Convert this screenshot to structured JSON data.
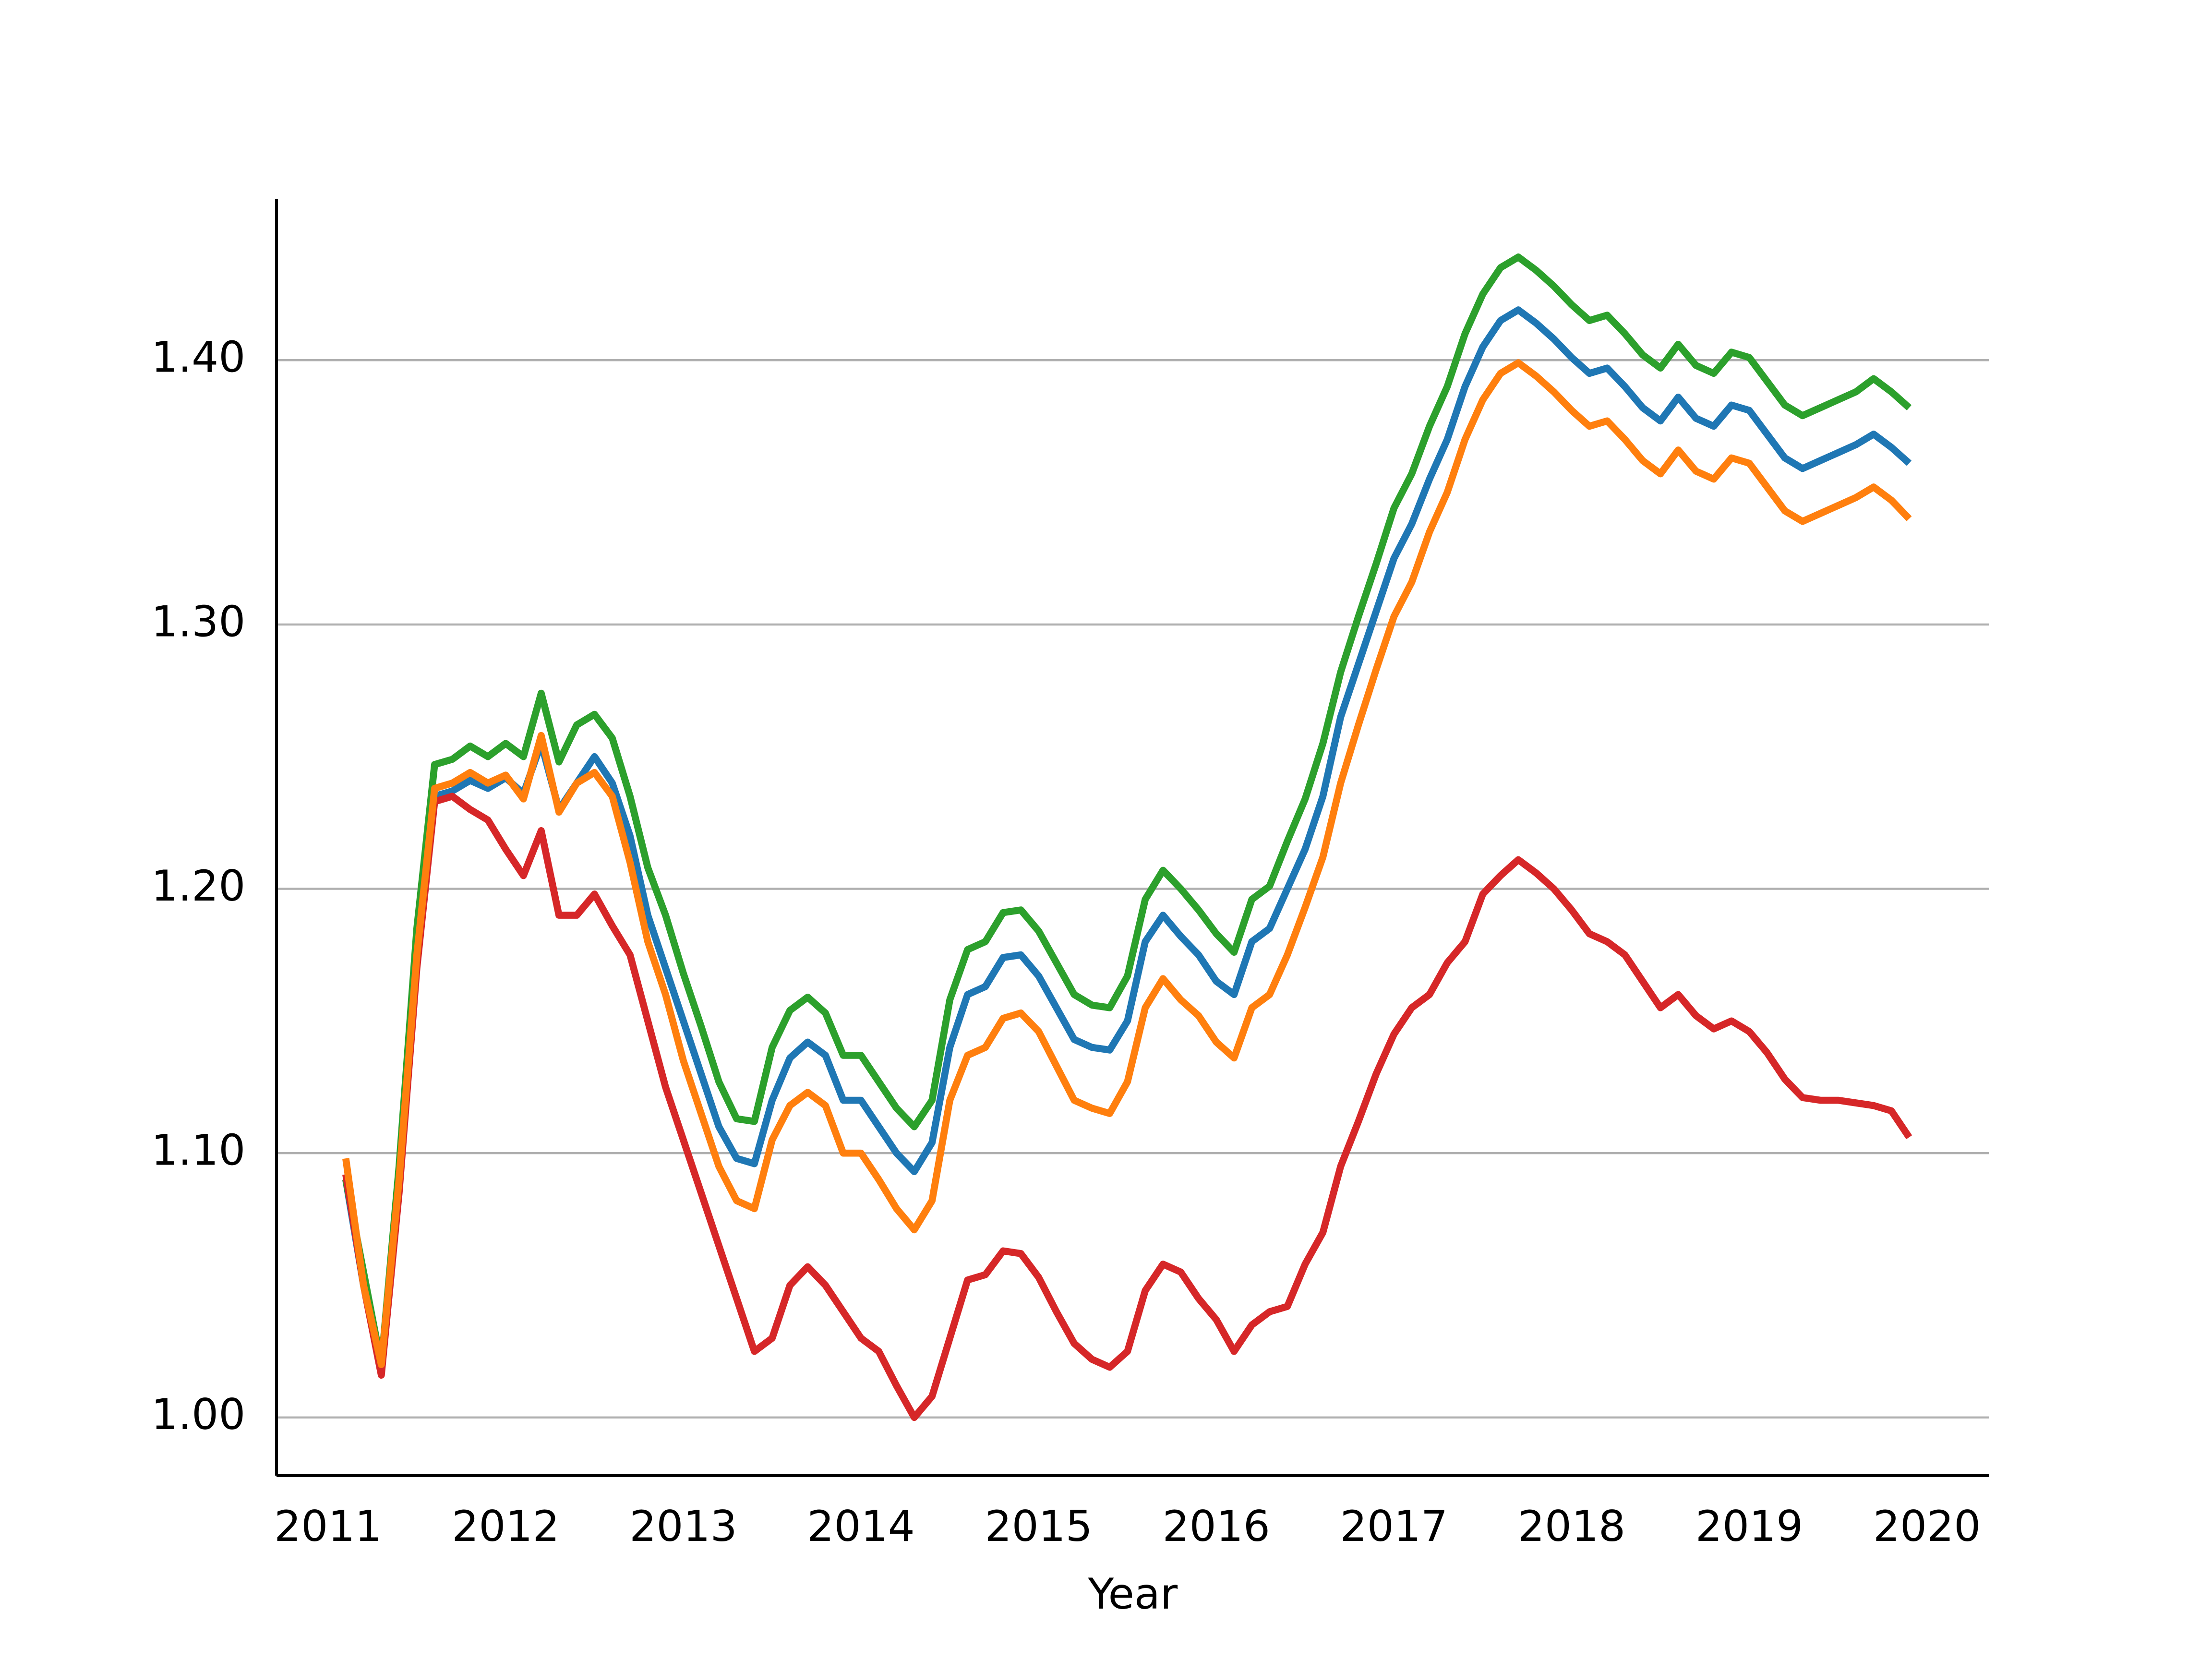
{
  "chart_data": {
    "type": "line",
    "x_label": "Year",
    "x": [
      2011.1,
      2011.2,
      2011.3,
      2011.4,
      2011.5,
      2011.6,
      2011.7,
      2011.8,
      2011.9,
      2012.0,
      2012.1,
      2012.2,
      2012.3,
      2012.4,
      2012.5,
      2012.6,
      2012.7,
      2012.8,
      2012.9,
      2013.0,
      2013.1,
      2013.2,
      2013.3,
      2013.4,
      2013.5,
      2013.6,
      2013.7,
      2013.8,
      2013.9,
      2014.0,
      2014.1,
      2014.2,
      2014.3,
      2014.4,
      2014.5,
      2014.6,
      2014.7,
      2014.8,
      2014.9,
      2015.0,
      2015.1,
      2015.2,
      2015.3,
      2015.4,
      2015.5,
      2015.6,
      2015.7,
      2015.8,
      2015.9,
      2016.0,
      2016.1,
      2016.2,
      2016.3,
      2016.4,
      2016.5,
      2016.6,
      2016.7,
      2016.8,
      2016.9,
      2017.0,
      2017.1,
      2017.2,
      2017.3,
      2017.4,
      2017.5,
      2017.6,
      2017.7,
      2017.8,
      2017.9,
      2018.0,
      2018.1,
      2018.2,
      2018.3,
      2018.4,
      2018.5,
      2018.6,
      2018.7,
      2018.8,
      2018.9,
      2019.0,
      2019.1,
      2019.2,
      2019.3,
      2019.4,
      2019.5,
      2019.6,
      2019.7,
      2019.8,
      2019.9
    ],
    "series": [
      {
        "color": "#1f77b4",
        "values": [
          1.09,
          1.05,
          1.02,
          1.09,
          1.18,
          1.235,
          1.237,
          1.241,
          1.238,
          1.242,
          1.236,
          1.255,
          1.23,
          1.24,
          1.25,
          1.24,
          1.22,
          1.19,
          1.17,
          1.15,
          1.13,
          1.11,
          1.098,
          1.096,
          1.12,
          1.136,
          1.142,
          1.137,
          1.12,
          1.12,
          1.11,
          1.1,
          1.093,
          1.104,
          1.14,
          1.16,
          1.163,
          1.174,
          1.175,
          1.167,
          1.155,
          1.143,
          1.14,
          1.139,
          1.15,
          1.18,
          1.19,
          1.182,
          1.175,
          1.165,
          1.16,
          1.18,
          1.185,
          1.2,
          1.215,
          1.235,
          1.265,
          1.285,
          1.305,
          1.325,
          1.338,
          1.355,
          1.37,
          1.39,
          1.405,
          1.415,
          1.419,
          1.414,
          1.408,
          1.401,
          1.395,
          1.397,
          1.39,
          1.382,
          1.377,
          1.386,
          1.378,
          1.375,
          1.383,
          1.381,
          1.372,
          1.363,
          1.359,
          1.362,
          1.365,
          1.368,
          1.372,
          1.367,
          1.361
        ]
      },
      {
        "color": "#2ca02c",
        "values": [
          1.09,
          1.055,
          1.02,
          1.095,
          1.185,
          1.247,
          1.249,
          1.254,
          1.25,
          1.255,
          1.25,
          1.274,
          1.248,
          1.262,
          1.266,
          1.257,
          1.235,
          1.208,
          1.19,
          1.168,
          1.148,
          1.127,
          1.113,
          1.112,
          1.14,
          1.154,
          1.159,
          1.153,
          1.137,
          1.137,
          1.127,
          1.117,
          1.11,
          1.12,
          1.158,
          1.177,
          1.18,
          1.191,
          1.192,
          1.184,
          1.172,
          1.16,
          1.156,
          1.155,
          1.167,
          1.196,
          1.207,
          1.2,
          1.192,
          1.183,
          1.176,
          1.196,
          1.201,
          1.218,
          1.234,
          1.255,
          1.282,
          1.303,
          1.323,
          1.344,
          1.357,
          1.375,
          1.39,
          1.41,
          1.425,
          1.435,
          1.439,
          1.434,
          1.428,
          1.421,
          1.415,
          1.417,
          1.41,
          1.402,
          1.397,
          1.406,
          1.398,
          1.395,
          1.403,
          1.401,
          1.392,
          1.383,
          1.379,
          1.382,
          1.385,
          1.388,
          1.393,
          1.388,
          1.382
        ]
      },
      {
        "color": "#d62728",
        "values": [
          1.092,
          1.05,
          1.016,
          1.085,
          1.17,
          1.233,
          1.235,
          1.23,
          1.226,
          1.215,
          1.205,
          1.222,
          1.19,
          1.19,
          1.198,
          1.186,
          1.175,
          1.15,
          1.125,
          1.105,
          1.085,
          1.065,
          1.045,
          1.025,
          1.03,
          1.05,
          1.057,
          1.05,
          1.04,
          1.03,
          1.025,
          1.012,
          1.0,
          1.008,
          1.03,
          1.052,
          1.054,
          1.063,
          1.062,
          1.053,
          1.04,
          1.028,
          1.022,
          1.019,
          1.025,
          1.048,
          1.058,
          1.055,
          1.045,
          1.037,
          1.025,
          1.035,
          1.04,
          1.042,
          1.058,
          1.07,
          1.095,
          1.112,
          1.13,
          1.145,
          1.155,
          1.16,
          1.172,
          1.18,
          1.198,
          1.205,
          1.211,
          1.206,
          1.2,
          1.192,
          1.183,
          1.18,
          1.175,
          1.165,
          1.155,
          1.16,
          1.152,
          1.147,
          1.15,
          1.146,
          1.138,
          1.128,
          1.121,
          1.12,
          1.12,
          1.119,
          1.118,
          1.116,
          1.106
        ]
      },
      {
        "color": "#ff7f0e",
        "values": [
          1.098,
          1.05,
          1.02,
          1.09,
          1.175,
          1.238,
          1.24,
          1.244,
          1.24,
          1.243,
          1.234,
          1.258,
          1.229,
          1.24,
          1.244,
          1.235,
          1.21,
          1.18,
          1.16,
          1.135,
          1.115,
          1.095,
          1.082,
          1.079,
          1.105,
          1.118,
          1.123,
          1.118,
          1.1,
          1.1,
          1.09,
          1.079,
          1.071,
          1.082,
          1.12,
          1.137,
          1.14,
          1.151,
          1.153,
          1.146,
          1.133,
          1.12,
          1.117,
          1.115,
          1.127,
          1.155,
          1.166,
          1.158,
          1.152,
          1.142,
          1.136,
          1.155,
          1.16,
          1.175,
          1.193,
          1.212,
          1.24,
          1.262,
          1.283,
          1.303,
          1.316,
          1.335,
          1.35,
          1.37,
          1.385,
          1.395,
          1.399,
          1.394,
          1.388,
          1.381,
          1.375,
          1.377,
          1.37,
          1.362,
          1.357,
          1.366,
          1.358,
          1.355,
          1.363,
          1.361,
          1.352,
          1.343,
          1.339,
          1.342,
          1.345,
          1.348,
          1.352,
          1.347,
          1.34
        ]
      }
    ],
    "xlim": [
      2010.71,
      2020.35
    ],
    "xticks": [
      2011,
      2012,
      2013,
      2014,
      2015,
      2016,
      2017,
      2018,
      2019,
      2020
    ],
    "ylim": [
      0.978,
      1.461
    ],
    "yticks": [
      {
        "value": 1.0,
        "label": "1.00"
      },
      {
        "value": 1.1,
        "label": "1.10"
      },
      {
        "value": 1.2,
        "label": "1.20"
      },
      {
        "value": 1.3,
        "label": "1.30"
      },
      {
        "value": 1.4,
        "label": "1.40"
      }
    ],
    "grid": true
  }
}
